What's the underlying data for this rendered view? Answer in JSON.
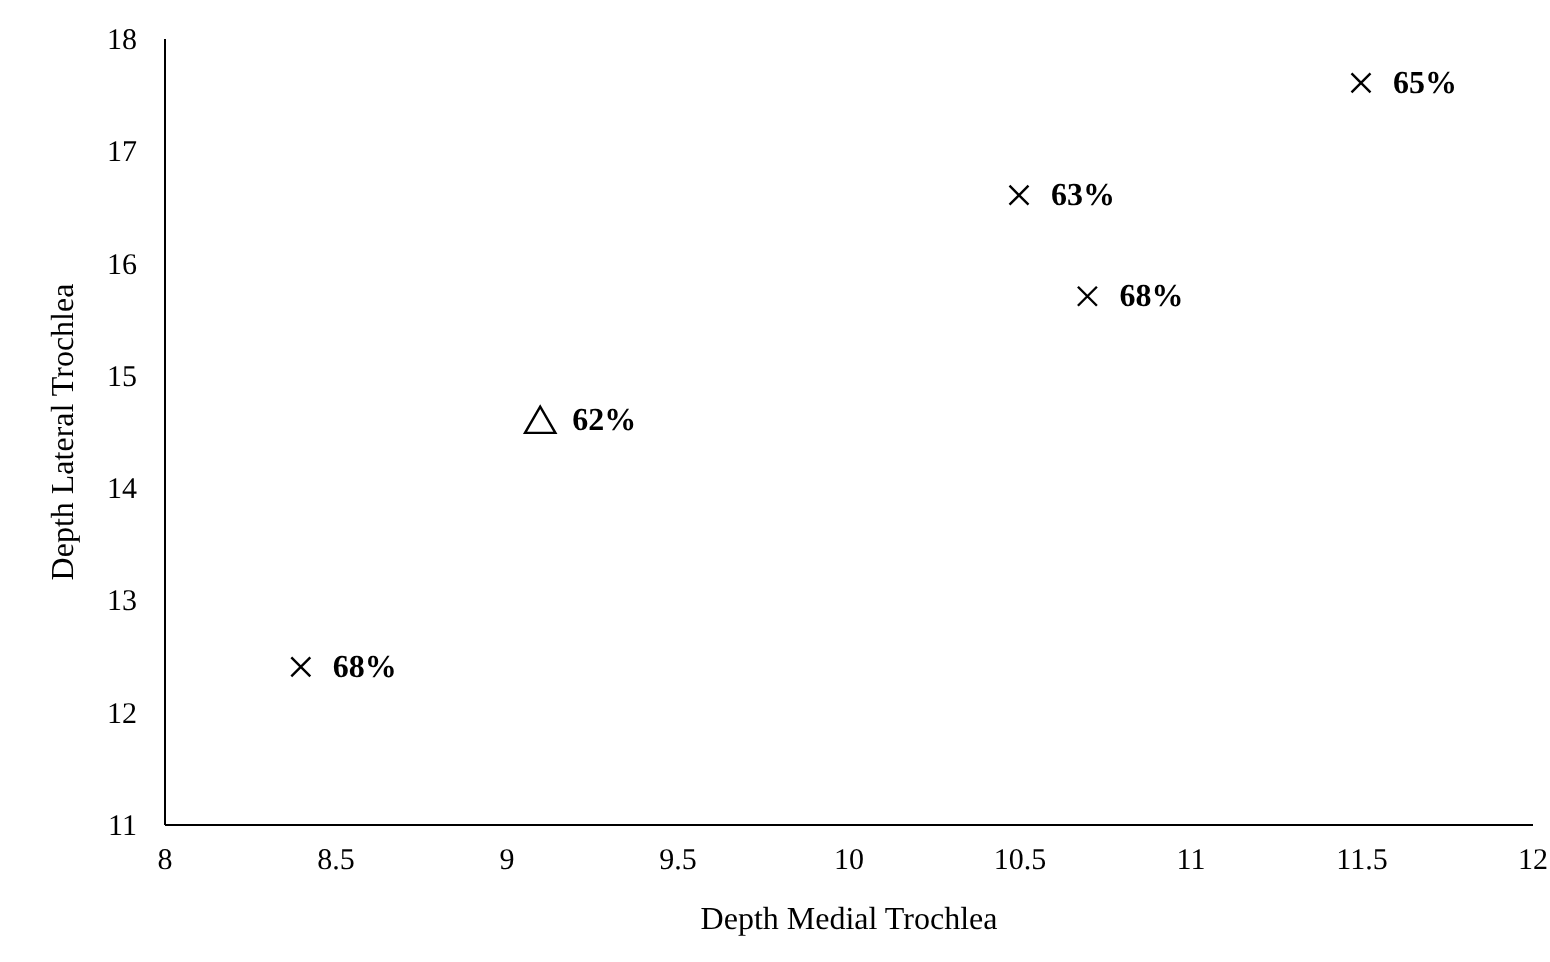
{
  "chart_data": {
    "type": "scatter",
    "xlabel": "Depth Medial Trochlea",
    "ylabel": "Depth Lateral Trochlea",
    "xlim": [
      8,
      12
    ],
    "xticks": [
      8,
      8.5,
      9,
      9.5,
      10,
      10.5,
      11,
      11.5,
      12
    ],
    "ylim": [
      11,
      18
    ],
    "yticks": [
      11,
      12,
      13,
      14,
      15,
      16,
      17,
      18
    ],
    "grid": false,
    "series": [
      {
        "color": "#000000",
        "marker": "cross",
        "x": [
          8.4,
          10.5,
          10.7,
          11.5
        ],
        "values": [
          12.4,
          16.6,
          15.7,
          17.6
        ]
      },
      {
        "color": "#000000",
        "marker": "triangle",
        "x": [
          9.1
        ],
        "values": [
          14.6
        ]
      }
    ],
    "annotations": [
      {
        "text": "68%",
        "x": 8.4,
        "y": 12.4
      },
      {
        "text": "63%",
        "x": 10.5,
        "y": 16.6
      },
      {
        "text": "68%",
        "x": 10.7,
        "y": 15.7
      },
      {
        "text": "65%",
        "x": 11.5,
        "y": 17.6
      },
      {
        "text": "62%",
        "x": 9.1,
        "y": 14.6
      }
    ]
  }
}
